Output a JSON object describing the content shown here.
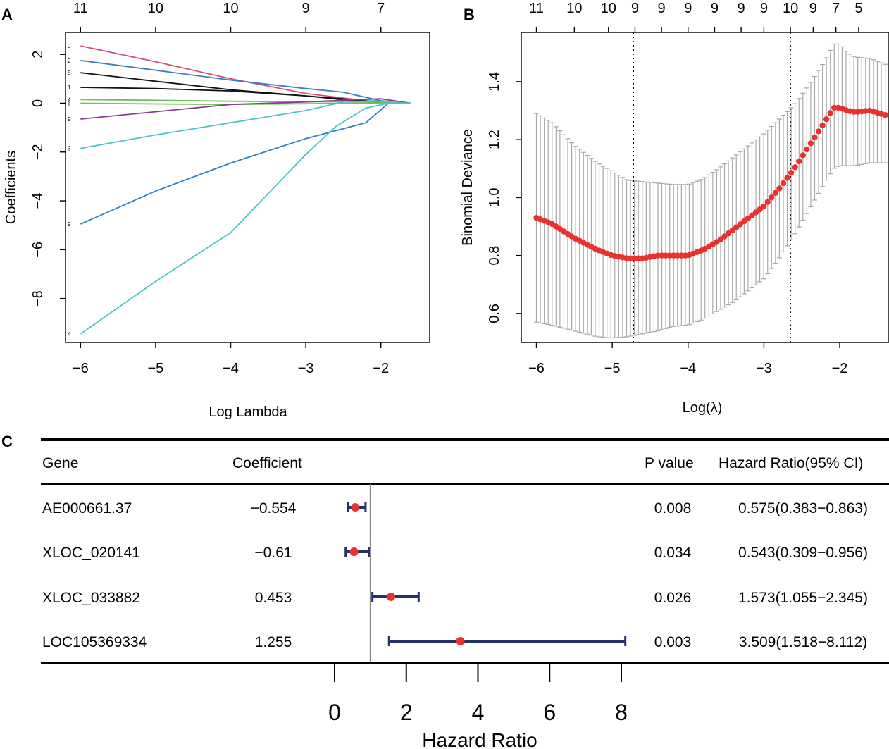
{
  "chart_data": [
    {
      "panel": "A",
      "type": "line",
      "xlabel": "Log Lambda",
      "ylabel": "Coefficients",
      "xlim": [
        -6.2,
        -1.35
      ],
      "ylim": [
        -9.8,
        2.9
      ],
      "x_ticks": [
        "−6",
        "−5",
        "−4",
        "−3",
        "−2"
      ],
      "y_ticks": [
        "2",
        "0",
        "−2",
        "−4",
        "−6",
        "−8"
      ],
      "top_ticks": {
        "x": [
          -6,
          -5,
          -4,
          -3,
          -2
        ],
        "labels": [
          "11",
          "10",
          "10",
          "9",
          "7"
        ]
      },
      "series": [
        {
          "name": "0",
          "color": "#d6506a",
          "x": [
            -6,
            -5,
            -4,
            -3,
            -2.2,
            -1.6
          ],
          "values": [
            2.35,
            1.7,
            1.0,
            0.4,
            0.1,
            0.0
          ]
        },
        {
          "name": "2",
          "color": "#3b7cc4",
          "x": [
            -6,
            -5,
            -4,
            -3,
            -2.5,
            -2.0,
            -1.6
          ],
          "values": [
            1.75,
            1.35,
            0.95,
            0.6,
            0.45,
            0.1,
            0.0
          ]
        },
        {
          "name": "5",
          "color": "#111111",
          "x": [
            -6,
            -5,
            -4,
            -3,
            -2.2,
            -1.6
          ],
          "values": [
            1.25,
            0.9,
            0.55,
            0.3,
            0.1,
            0.0
          ]
        },
        {
          "name": "1",
          "color": "#111111",
          "x": [
            -6,
            -5,
            -4,
            -3,
            -2.2,
            -1.6
          ],
          "values": [
            0.65,
            0.6,
            0.5,
            0.3,
            0.05,
            0.0
          ]
        },
        {
          "name": "4",
          "color": "#6fbf5b",
          "x": [
            -6,
            -5,
            -4,
            -3,
            -2.2,
            -1.6
          ],
          "values": [
            0.15,
            0.12,
            0.08,
            0.06,
            0.05,
            0.0
          ]
        },
        {
          "name": "6",
          "color": "#6fbf5b",
          "x": [
            -6,
            -5,
            -4,
            -3,
            -2.2,
            -1.6
          ],
          "values": [
            0.0,
            -0.03,
            -0.05,
            -0.02,
            0.0,
            0.0
          ]
        },
        {
          "name": "9",
          "color": "#8a3c95",
          "x": [
            -6,
            -5,
            -4,
            -3,
            -2.5,
            -2.0,
            -1.6
          ],
          "values": [
            -0.65,
            -0.35,
            -0.05,
            0.05,
            0.12,
            0.18,
            0.0
          ]
        },
        {
          "name": "3",
          "color": "#4fc4c8",
          "x": [
            -6,
            -5,
            -4,
            -3,
            -2.5,
            -2.1,
            -1.6
          ],
          "values": [
            -1.85,
            -1.3,
            -0.8,
            -0.3,
            0.05,
            0.1,
            0.0
          ]
        },
        {
          "name": "9",
          "color": "#2f80c2",
          "x": [
            -6,
            -5,
            -4,
            -3,
            -2.2,
            -1.9,
            -1.6
          ],
          "values": [
            -4.95,
            -3.6,
            -2.45,
            -1.45,
            -0.8,
            0.0,
            0.0
          ]
        },
        {
          "name": "4",
          "color": "#4fc4c8",
          "x": [
            -6,
            -5,
            -4,
            -3,
            -2.6,
            -2.2,
            -1.9,
            -1.6
          ],
          "values": [
            -9.45,
            -7.3,
            -5.3,
            -2.1,
            -0.95,
            -0.2,
            0.0,
            0.0
          ]
        }
      ]
    },
    {
      "panel": "B",
      "type": "line",
      "xlabel": "Log(λ)",
      "ylabel": "Binomial Deviance",
      "xlim": [
        -6.2,
        -1.35
      ],
      "ylim": [
        0.5,
        1.57
      ],
      "x_ticks": [
        "−6",
        "−5",
        "−4",
        "−3",
        "−2"
      ],
      "y_ticks": [
        "0.6",
        "0.8",
        "1.0",
        "1.2",
        "1.4"
      ],
      "top_ticks": {
        "x": [
          -6,
          -5.5,
          -5.05,
          -4.7,
          -4.35,
          -4.0,
          -3.65,
          -3.3,
          -3.0,
          -2.65,
          -2.35,
          -2.05,
          -1.75
        ],
        "labels": [
          "11",
          "10",
          "10",
          "9",
          "9",
          "9",
          "9",
          "9",
          "9",
          "10",
          "9",
          "7",
          "5"
        ]
      },
      "vlines": [
        -4.72,
        -2.65
      ],
      "curve_knots": {
        "x": [
          -6,
          -5.8,
          -5.5,
          -5.2,
          -5.0,
          -4.8,
          -4.6,
          -4.4,
          -4.2,
          -4.0,
          -3.8,
          -3.6,
          -3.4,
          -3.2,
          -3.0,
          -2.8,
          -2.6,
          -2.4,
          -2.2,
          -2.08,
          -2.0,
          -1.9,
          -1.8,
          -1.6,
          -1.4
        ],
        "y": [
          0.93,
          0.91,
          0.86,
          0.82,
          0.8,
          0.79,
          0.79,
          0.8,
          0.8,
          0.8,
          0.82,
          0.85,
          0.89,
          0.93,
          0.97,
          1.03,
          1.1,
          1.18,
          1.26,
          1.31,
          1.31,
          1.3,
          1.295,
          1.3,
          1.285
        ]
      },
      "upper_knots": {
        "x": [
          -6,
          -5.8,
          -5.5,
          -5.2,
          -5.0,
          -4.8,
          -4.6,
          -4.4,
          -4.2,
          -4.0,
          -3.8,
          -3.6,
          -3.4,
          -3.2,
          -3.0,
          -2.8,
          -2.6,
          -2.4,
          -2.2,
          -2.08,
          -2.0,
          -1.9,
          -1.8,
          -1.6,
          -1.4
        ],
        "y": [
          1.29,
          1.26,
          1.18,
          1.12,
          1.09,
          1.06,
          1.055,
          1.05,
          1.045,
          1.045,
          1.065,
          1.1,
          1.14,
          1.18,
          1.22,
          1.27,
          1.32,
          1.39,
          1.47,
          1.53,
          1.53,
          1.5,
          1.485,
          1.48,
          1.46
        ]
      },
      "lower_knots": {
        "x": [
          -6,
          -5.8,
          -5.5,
          -5.2,
          -5.0,
          -4.8,
          -4.6,
          -4.4,
          -4.2,
          -4.0,
          -3.8,
          -3.6,
          -3.4,
          -3.2,
          -3.0,
          -2.8,
          -2.6,
          -2.4,
          -2.2,
          -2.08,
          -2.0,
          -1.9,
          -1.8,
          -1.6,
          -1.4
        ],
        "y": [
          0.57,
          0.56,
          0.54,
          0.52,
          0.515,
          0.52,
          0.53,
          0.54,
          0.555,
          0.56,
          0.58,
          0.61,
          0.64,
          0.68,
          0.72,
          0.79,
          0.87,
          0.96,
          1.05,
          1.1,
          1.11,
          1.11,
          1.11,
          1.12,
          1.12
        ]
      },
      "point_color": "#e8322d",
      "errorbar_color": "#a8a8a8"
    },
    {
      "panel": "C",
      "type": "table",
      "headers": {
        "gene": "Gene",
        "coef": "Coefficient",
        "p": "P value",
        "hr": "Hazard Ratio(95% CI)"
      },
      "rows": [
        {
          "gene": "AE000661.37",
          "coef": "−0.554",
          "p": "0.008",
          "hr_text": "0.575(0.383−0.863)",
          "hr": 0.575,
          "lo": 0.383,
          "hi": 0.863
        },
        {
          "gene": "XLOC_020141",
          "coef": "−0.61",
          "p": "0.034",
          "hr_text": "0.543(0.309−0.956)",
          "hr": 0.543,
          "lo": 0.309,
          "hi": 0.956
        },
        {
          "gene": "XLOC_033882",
          "coef": "0.453",
          "p": "0.026",
          "hr_text": "1.573(1.055−2.345)",
          "hr": 1.573,
          "lo": 1.055,
          "hi": 2.345
        },
        {
          "gene": "LOC105369334",
          "coef": "1.255",
          "p": "0.003",
          "hr_text": "3.509(1.518−8.112)",
          "hr": 3.509,
          "lo": 1.518,
          "hi": 8.112
        }
      ],
      "xlabel": "Hazard Ratio",
      "x_ticks": [
        "0",
        "2",
        "4",
        "6",
        "8"
      ],
      "reference_line": 1,
      "point_color": "#e8322d",
      "ci_color": "#26306b"
    }
  ],
  "labels": {
    "panel_a": "A",
    "panel_b": "B",
    "panel_c": "C"
  }
}
